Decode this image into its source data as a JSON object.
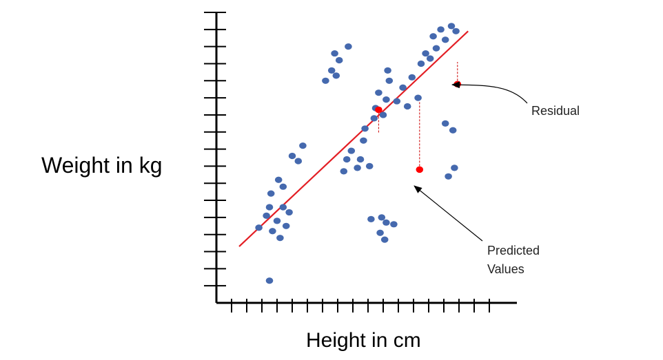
{
  "chart_data": {
    "type": "scatter",
    "title": "",
    "xlabel": "Height in cm",
    "ylabel": "Weight in kg",
    "xlim": [
      0,
      18
    ],
    "ylim": [
      0,
      17
    ],
    "grid": false,
    "colors": {
      "points": "#4569ae",
      "predicted": "#ff0000",
      "fit_line": "#e31e24",
      "axes": "#000000",
      "residual": "#cc0000"
    },
    "points": [
      [
        2.8,
        4.4
      ],
      [
        3.3,
        5.1
      ],
      [
        3.5,
        1.3
      ],
      [
        3.5,
        5.6
      ],
      [
        3.6,
        6.4
      ],
      [
        3.7,
        4.2
      ],
      [
        4.0,
        4.8
      ],
      [
        4.1,
        7.2
      ],
      [
        4.2,
        3.8
      ],
      [
        4.4,
        5.6
      ],
      [
        4.4,
        6.8
      ],
      [
        4.6,
        4.5
      ],
      [
        4.8,
        5.3
      ],
      [
        5.0,
        8.6
      ],
      [
        5.4,
        8.3
      ],
      [
        5.7,
        9.2
      ],
      [
        8.4,
        7.7
      ],
      [
        8.6,
        8.4
      ],
      [
        8.9,
        8.9
      ],
      [
        9.3,
        7.9
      ],
      [
        9.5,
        8.4
      ],
      [
        9.7,
        9.5
      ],
      [
        9.8,
        10.2
      ],
      [
        10.1,
        8.0
      ],
      [
        10.4,
        10.8
      ],
      [
        10.5,
        11.4
      ],
      [
        10.7,
        12.3
      ],
      [
        11.0,
        11.0
      ],
      [
        11.2,
        11.9
      ],
      [
        11.3,
        13.6
      ],
      [
        11.4,
        13.0
      ],
      [
        11.9,
        11.8
      ],
      [
        12.3,
        12.6
      ],
      [
        12.6,
        11.5
      ],
      [
        12.9,
        13.2
      ],
      [
        13.3,
        12.0
      ],
      [
        13.5,
        14.0
      ],
      [
        13.8,
        14.6
      ],
      [
        14.1,
        14.3
      ],
      [
        14.3,
        15.6
      ],
      [
        14.5,
        14.9
      ],
      [
        14.8,
        16.0
      ],
      [
        15.1,
        15.4
      ],
      [
        15.5,
        16.2
      ],
      [
        15.8,
        15.9
      ],
      [
        15.1,
        10.5
      ],
      [
        15.6,
        10.1
      ],
      [
        15.3,
        7.4
      ],
      [
        15.7,
        7.9
      ],
      [
        7.2,
        13.0
      ],
      [
        7.6,
        13.6
      ],
      [
        7.9,
        13.3
      ],
      [
        8.1,
        14.2
      ],
      [
        7.8,
        14.6
      ],
      [
        8.7,
        15.0
      ],
      [
        10.2,
        4.9
      ],
      [
        10.9,
        5.0
      ],
      [
        11.2,
        4.7
      ],
      [
        11.7,
        4.6
      ],
      [
        10.8,
        4.1
      ],
      [
        11.1,
        3.7
      ]
    ],
    "predicted": [
      [
        10.7,
        11.3
      ],
      [
        13.4,
        7.8
      ],
      [
        15.9,
        12.8
      ]
    ],
    "fit_line": [
      [
        1.5,
        3.3
      ],
      [
        16.6,
        15.9
      ]
    ],
    "residuals": [
      [
        10.7,
        11.3,
        10.7,
        9.9
      ],
      [
        13.4,
        7.8,
        13.4,
        11.8
      ],
      [
        15.9,
        12.8,
        15.9,
        14.1
      ]
    ],
    "annotations": {
      "residual": "Residual",
      "predicted_line1": "Predicted",
      "predicted_line2": "Values"
    }
  }
}
